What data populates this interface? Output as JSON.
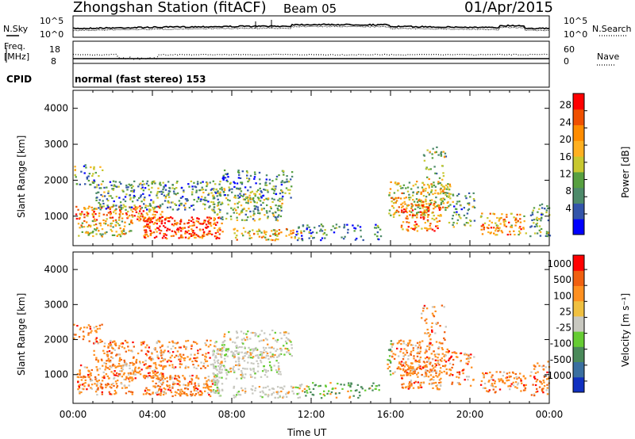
{
  "header": {
    "station": "Zhongshan Station (fitACF)",
    "beam": "Beam 05",
    "date": "01/Apr/2015"
  },
  "top_panel": {
    "left_label": "N.Sky",
    "right_label": "N.Search",
    "left_ticks": [
      "10^5",
      "10^0"
    ],
    "right_ticks": [
      "10^5",
      "10^0"
    ]
  },
  "freq_panel": {
    "left_label_1": "Freq.",
    "left_label_2": "[MHz]",
    "left_ticks": [
      "18",
      "8"
    ],
    "right_ticks": [
      "60",
      "0"
    ],
    "right_label": "Nave"
  },
  "cpid": {
    "label": "CPID",
    "mode": "normal (fast stereo) 153"
  },
  "chart_data": [
    {
      "type": "heatmap",
      "quantity": "Power",
      "ylabel": "Slant Range [km]",
      "ylim": [
        180,
        4500
      ],
      "yticks": [
        "1000",
        "2000",
        "3000",
        "4000"
      ],
      "xlim": [
        "00:00",
        "24:00"
      ],
      "colorbar_label": "Power [dB]",
      "colorbar_ticks": [
        "28",
        "24",
        "20",
        "16",
        "12",
        "8",
        "4"
      ],
      "colorbar_colors": [
        "#0000ff",
        "#3355aa",
        "#4d8a6a",
        "#57a040",
        "#c8c830",
        "#ffb020",
        "#ff8c00",
        "#f05000",
        "#ff0000"
      ]
    },
    {
      "type": "heatmap",
      "quantity": "Velocity",
      "ylabel": "Slant Range [km]",
      "ylim": [
        180,
        4500
      ],
      "yticks": [
        "1000",
        "2000",
        "3000",
        "4000"
      ],
      "xlim": [
        "00:00",
        "24:00"
      ],
      "colorbar_label": "Velocity [m s⁻¹]",
      "colorbar_ticks": [
        "1000",
        "500",
        "100",
        "25",
        "-25",
        "-100",
        "-500",
        "-1000"
      ],
      "colorbar_colors": [
        "#1030c0",
        "#3a6fa0",
        "#4a8a5a",
        "#66cc33",
        "#c8c8c0",
        "#f0c040",
        "#ff9020",
        "#f06010",
        "#ff0000"
      ]
    }
  ],
  "x_axis": {
    "ticks": [
      "00:00",
      "04:00",
      "08:00",
      "12:00",
      "16:00",
      "20:00",
      "00:00"
    ],
    "label": "Time UT"
  }
}
